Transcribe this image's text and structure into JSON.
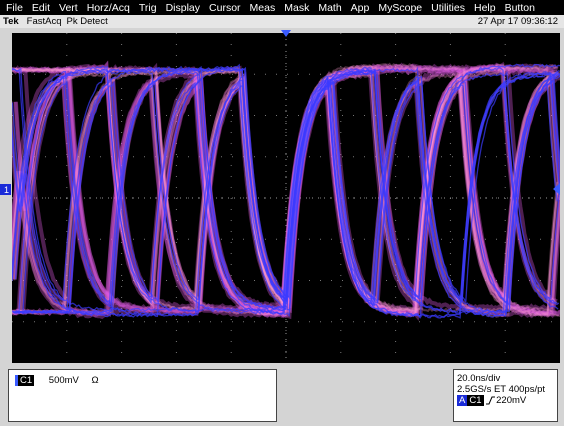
{
  "menu": [
    "File",
    "Edit",
    "Vert",
    "Horz/Acq",
    "Trig",
    "Display",
    "Cursor",
    "Meas",
    "Mask",
    "Math",
    "App",
    "MyScope",
    "Utilities",
    "Help",
    "Button"
  ],
  "status": {
    "brand": "Tek",
    "mode": "FastAcq",
    "acquisition": "Pk Detect",
    "datetime": "27 Apr 17 09:36:12"
  },
  "channel_marker": "1",
  "channel_panel": {
    "channel": "C1",
    "scale": "500mV",
    "impedance": "Ω"
  },
  "timebase_panel": {
    "time_div": "20.0ns/div",
    "sample": "2.5GS/s ET 400ps/pt",
    "trigger_source": "A",
    "trigger_channel": "C1",
    "trigger_level": "220mV"
  }
}
